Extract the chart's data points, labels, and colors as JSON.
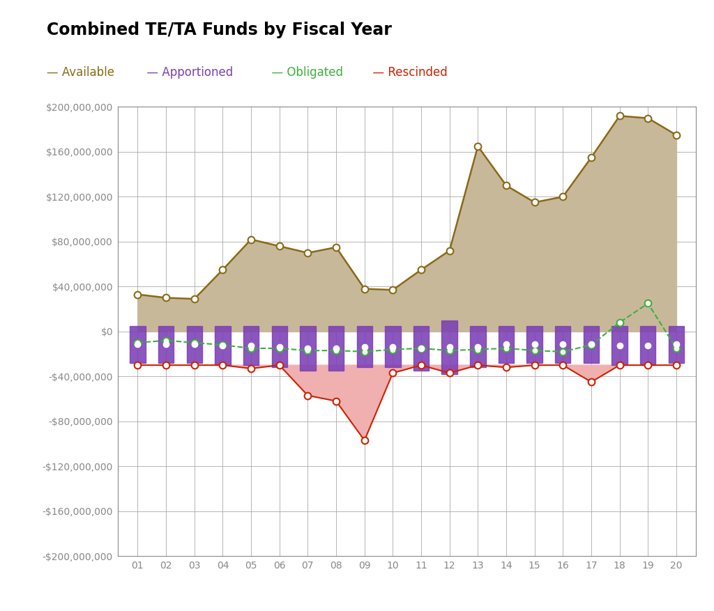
{
  "title": "Combined TE/TA Funds by Fiscal Year",
  "years": [
    1,
    2,
    3,
    4,
    5,
    6,
    7,
    8,
    9,
    10,
    11,
    12,
    13,
    14,
    15,
    16,
    17,
    18,
    19,
    20
  ],
  "year_labels": [
    "01",
    "02",
    "03",
    "04",
    "05",
    "06",
    "07",
    "08",
    "09",
    "10",
    "11",
    "12",
    "13",
    "14",
    "15",
    "16",
    "17",
    "18",
    "19",
    "20"
  ],
  "available": [
    33000000,
    30000000,
    29000000,
    55000000,
    82000000,
    76000000,
    70000000,
    75000000,
    38000000,
    37000000,
    55000000,
    72000000,
    165000000,
    130000000,
    115000000,
    120000000,
    155000000,
    192000000,
    190000000,
    175000000
  ],
  "apportioned_top": [
    5000000,
    5000000,
    5000000,
    5000000,
    5000000,
    5000000,
    5000000,
    5000000,
    5000000,
    5000000,
    5000000,
    10000000,
    5000000,
    5000000,
    5000000,
    5000000,
    5000000,
    5000000,
    5000000,
    5000000
  ],
  "apportioned_bottom": [
    -28000000,
    -28000000,
    -28000000,
    -30000000,
    -30000000,
    -32000000,
    -35000000,
    -35000000,
    -32000000,
    -32000000,
    -35000000,
    -38000000,
    -32000000,
    -28000000,
    -28000000,
    -28000000,
    -28000000,
    -30000000,
    -30000000,
    -28000000
  ],
  "obligated": [
    -10000000,
    -8000000,
    -10000000,
    -12000000,
    -15000000,
    -15000000,
    -17000000,
    -17000000,
    -18000000,
    -16000000,
    -15000000,
    -17000000,
    -16000000,
    -15000000,
    -17000000,
    -18000000,
    -12000000,
    8000000,
    25000000,
    -15000000
  ],
  "rescinded": [
    -30000000,
    -30000000,
    -30000000,
    -30000000,
    -33000000,
    -30000000,
    -57000000,
    -62000000,
    -97000000,
    -37000000,
    -30000000,
    -37000000,
    -30000000,
    -32000000,
    -30000000,
    -30000000,
    -45000000,
    -30000000,
    -30000000,
    -30000000
  ],
  "rescinded_baseline": -30000000,
  "available_color": "#8B6914",
  "available_fill": "#C8B89A",
  "apportioned_color": "#7B3FB5",
  "obligated_color": "#3CB03C",
  "rescinded_color": "#CC2200",
  "rescinded_fill": "#F0B0B0",
  "background_color": "#FFFFFF",
  "grid_color": "#AAAAAA",
  "tick_color": "#888888",
  "ylim_min": -200000000,
  "ylim_max": 200000000,
  "ytick_step": 40000000
}
